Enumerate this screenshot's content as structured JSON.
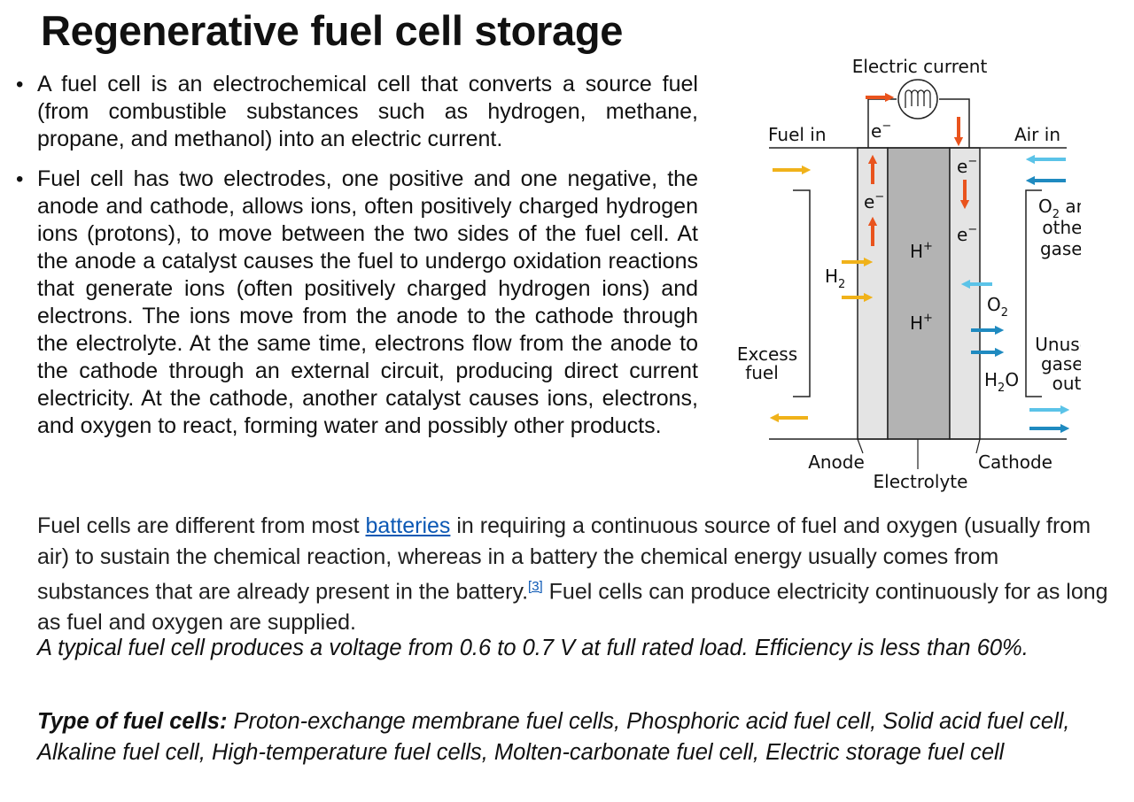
{
  "slide": {
    "title": "Regenerative fuel cell storage"
  },
  "bullets": [
    "A fuel cell is an electrochemical cell that converts a source fuel (from combustible substances such as hydrogen, methane, propane, and methanol) into an electric current.",
    "Fuel cell has two electrodes, one positive and one negative, the anode and cathode, allows ions, often positively charged hydrogen ions (protons), to move between the two sides of the fuel cell. At the anode a catalyst causes the fuel to undergo oxidation reactions that generate ions (often positively charged hydrogen ions) and electrons. The ions move from the anode to the cathode through the electrolyte. At the same time, electrons flow from the anode to the cathode through an external circuit, producing direct current electricity. At the cathode, another catalyst causes ions, electrons, and oxygen to react, forming water and possibly other products."
  ],
  "wiki": {
    "before_link": "Fuel cells are different from most ",
    "link_text": "batteries",
    "after_link": " in requiring a continuous source of fuel and oxygen (usually from air) to sustain the chemical reaction, whereas in a battery the chemical energy usually comes from substances that are already present in the battery.",
    "citation": "[3]",
    "after_citation": " Fuel cells can produce electricity continuously for as long as fuel and oxygen are supplied."
  },
  "voltage_note": "A typical fuel cell produces a voltage from 0.6 to 0.7 V at full rated load. Efficiency is less than 60%.",
  "types": {
    "label": "Type of fuel cells:",
    "text": " Proton-exchange membrane fuel cells, Phosphoric acid fuel cell, Solid acid fuel cell, Alkaline fuel cell, High-temperature fuel cells, Molten-carbonate fuel cell, Electric storage fuel cell"
  },
  "diagram": {
    "electric_current": "Electric current",
    "fuel_in": "Fuel in",
    "air_in": "Air in",
    "electron": "e",
    "electron_charge": "−",
    "proton": "H",
    "proton_charge": "+",
    "h2": "H",
    "h2_sub": "2",
    "o2": "O",
    "o2_sub": "2",
    "o2_gases_line1_a": "O",
    "o2_gases_line1_sub": "2",
    "o2_gases_line1_b": " and",
    "o2_gases_line2": "other",
    "o2_gases_line3": "gases",
    "h2o_a": "H",
    "h2o_sub": "2",
    "h2o_b": "O",
    "excess_line1": "Excess",
    "excess_line2": "fuel",
    "unused_line1": "Unused",
    "unused_line2": "gases",
    "unused_line3": "out",
    "anode": "Anode",
    "cathode": "Cathode",
    "electrolyte": "Electrolyte"
  },
  "colors": {
    "fuel_arrow": "#f0b21a",
    "electron_arrow": "#e9531d",
    "air_arrow": "#5bc3e8",
    "water_arrow": "#1f8ac0",
    "electrode_fill": "#e4e4e4",
    "electrolyte_fill": "#b3b3b3",
    "link": "#0b58b4"
  }
}
